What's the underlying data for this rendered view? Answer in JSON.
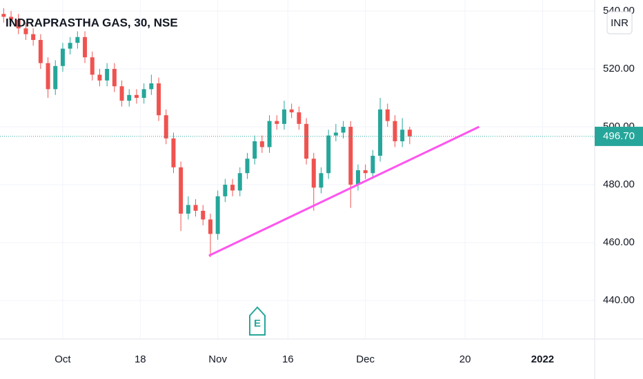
{
  "chart_data": {
    "type": "candlestick",
    "title": "INDRAPRASTHA GAS, 30, NSE",
    "currency": "INR",
    "earnings_marker": "E",
    "x": [
      -8,
      -7,
      -6,
      -5,
      -4,
      -3,
      -2,
      -1,
      0,
      1,
      2,
      3,
      4,
      5,
      6,
      7,
      8,
      9,
      10,
      11,
      12,
      13,
      14,
      15,
      16,
      17,
      18,
      19,
      20,
      21,
      22,
      23,
      24,
      25,
      26,
      27,
      28,
      29,
      30,
      31,
      32,
      33,
      34,
      35,
      36,
      37,
      38,
      39,
      40,
      41,
      42,
      43,
      44,
      45,
      46,
      47
    ],
    "open": [
      539,
      538,
      537,
      534,
      532,
      530,
      522,
      513,
      521,
      527,
      529,
      531,
      524,
      518,
      516,
      520,
      514,
      509,
      511,
      510,
      513,
      515,
      504,
      496,
      486,
      470,
      473,
      471,
      468,
      463,
      476,
      480,
      478,
      484,
      489,
      495,
      493,
      502,
      501,
      506,
      505,
      501,
      489,
      479,
      484,
      497,
      498,
      500,
      480,
      485,
      484,
      490,
      506,
      502,
      495,
      499
    ],
    "high": [
      541,
      540,
      539,
      536,
      534,
      532,
      524,
      523,
      529,
      531,
      533,
      533,
      526,
      520,
      522,
      522,
      516,
      513,
      513,
      515,
      518,
      517,
      506,
      498,
      488,
      476,
      475,
      473,
      470,
      478,
      482,
      482,
      486,
      491,
      497,
      497,
      504,
      504,
      509,
      508,
      507,
      503,
      491,
      486,
      499,
      501,
      502,
      502,
      487,
      487,
      492,
      510,
      508,
      504,
      503,
      500
    ],
    "low": [
      536,
      535,
      532,
      530,
      528,
      520,
      510,
      511,
      519,
      525,
      527,
      522,
      516,
      514,
      514,
      512,
      507,
      507,
      508,
      508,
      511,
      502,
      494,
      484,
      464,
      468,
      469,
      466,
      455,
      461,
      474,
      476,
      476,
      482,
      487,
      491,
      491,
      499,
      499,
      503,
      499,
      487,
      471,
      477,
      482,
      495,
      496,
      472,
      478,
      482,
      482,
      488,
      500,
      493,
      493,
      494
    ],
    "close": [
      538,
      537,
      534,
      532,
      530,
      522,
      513,
      521,
      527,
      529,
      531,
      524,
      518,
      516,
      520,
      514,
      509,
      511,
      510,
      513,
      515,
      504,
      496,
      486,
      470,
      473,
      471,
      468,
      463,
      476,
      480,
      478,
      484,
      489,
      495,
      493,
      502,
      501,
      506,
      505,
      501,
      489,
      479,
      484,
      497,
      498,
      500,
      480,
      485,
      484,
      490,
      506,
      502,
      495,
      499,
      496.7
    ],
    "up_color": "#26a69a",
    "down_color": "#ef5350",
    "trendline": {
      "x": [
        19.8,
        56.4
      ],
      "values": [
        455.5,
        500
      ],
      "color": "#ff55ee"
    },
    "last_price": 496.7,
    "last_price_label": "496.70",
    "xlim": [
      -8.5,
      72.06
    ],
    "ylim": [
      426.7,
      543.8
    ],
    "xticks": [
      {
        "value": 0,
        "label": "Oct"
      },
      {
        "value": 10.5,
        "label": "18"
      },
      {
        "value": 21,
        "label": "Nov"
      },
      {
        "value": 30.5,
        "label": "16"
      },
      {
        "value": 41,
        "label": "Dec"
      },
      {
        "value": 54.5,
        "label": "20"
      },
      {
        "value": 65,
        "label": "2022"
      }
    ],
    "yticks": [
      {
        "value": 440,
        "label": "440.00"
      },
      {
        "value": 460,
        "label": "460.00"
      },
      {
        "value": 480,
        "label": "480.00"
      },
      {
        "value": 500,
        "label": "500.00"
      },
      {
        "value": 520,
        "label": "520.00"
      },
      {
        "value": 540,
        "label": "540.00"
      }
    ],
    "grid": true
  }
}
